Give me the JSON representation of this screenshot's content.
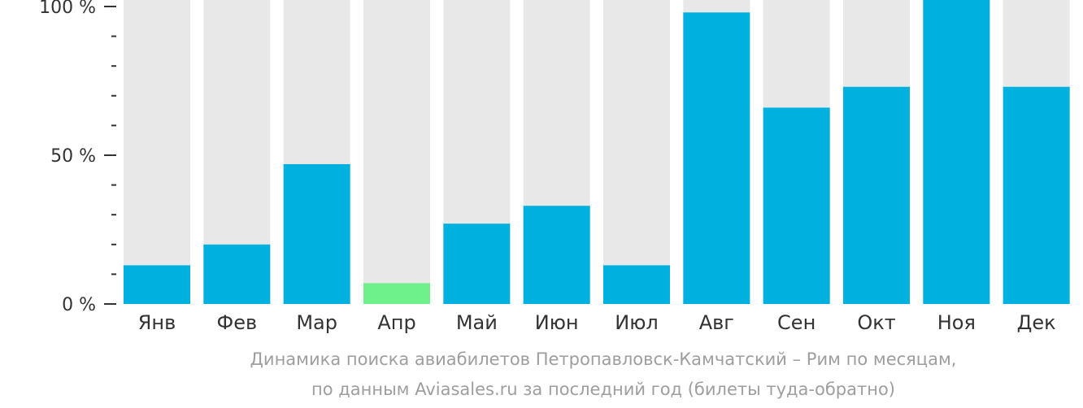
{
  "chart_data": {
    "type": "bar",
    "categories": [
      "Янв",
      "Фев",
      "Мар",
      "Апр",
      "Май",
      "Июн",
      "Июл",
      "Авг",
      "Сен",
      "Окт",
      "Ноя",
      "Дек"
    ],
    "values": [
      13,
      20,
      47,
      7,
      27,
      33,
      13,
      98,
      66,
      73,
      103,
      73
    ],
    "highlight_index": 3,
    "ylim": [
      0,
      100
    ],
    "yticks": [
      {
        "value": 0,
        "label": "0 %"
      },
      {
        "value": 50,
        "label": "50 %"
      },
      {
        "value": 100,
        "label": "100 %"
      }
    ],
    "minor_tick_step": 10,
    "caption": [
      "Динамика поиска авиабилетов Петропавловск-Камчатский – Рим по месяцам,",
      "по данным Aviasales.ru за последний год (билеты туда-обратно)"
    ],
    "colors": {
      "bar": "#00b0de",
      "highlight": "#6ef08a",
      "background_bar": "#e8e8e8",
      "axis": "#333333"
    }
  }
}
